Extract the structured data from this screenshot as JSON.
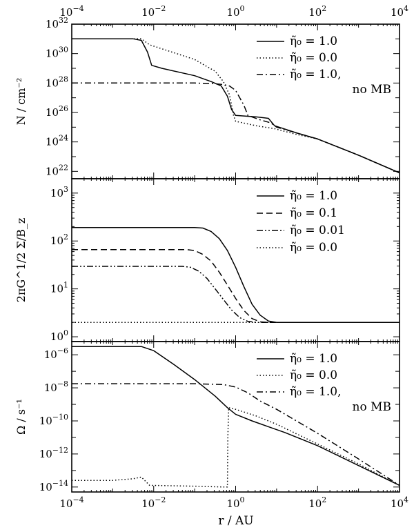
{
  "figure": {
    "xlabel": "r / AU",
    "x_tick_labels": [
      {
        "value": -4,
        "base": "10",
        "exp": "−4"
      },
      {
        "value": -2,
        "base": "10",
        "exp": "−2"
      },
      {
        "value": 0,
        "base": "10",
        "exp": "0"
      },
      {
        "value": 2,
        "base": "10",
        "exp": "2"
      },
      {
        "value": 4,
        "base": "10",
        "exp": "4"
      }
    ]
  },
  "chart_data": [
    {
      "type": "line",
      "panel": "top",
      "xscale": "log",
      "yscale": "log",
      "xlim": [
        0.0001,
        10000
      ],
      "ylim_log10": [
        21.5,
        32
      ],
      "ylabel": "N / cm⁻²",
      "y_tick_labels": [
        {
          "value": 22,
          "base": "10",
          "exp": "22"
        },
        {
          "value": 24,
          "base": "10",
          "exp": "24"
        },
        {
          "value": 26,
          "base": "10",
          "exp": "26"
        },
        {
          "value": 28,
          "base": "10",
          "exp": "28"
        },
        {
          "value": 30,
          "base": "10",
          "exp": "30"
        },
        {
          "value": 32,
          "base": "10",
          "exp": "32"
        }
      ],
      "legend_position": "top-right",
      "series": [
        {
          "name": "η̃₀ = 1.0",
          "style": "solid",
          "points_log10": [
            [
              -4,
              31.0
            ],
            [
              -2.5,
              31.0
            ],
            [
              -2.3,
              30.9
            ],
            [
              -2.15,
              30.1
            ],
            [
              -2.05,
              29.2
            ],
            [
              -1.8,
              29.0
            ],
            [
              -1.0,
              28.5
            ],
            [
              -0.6,
              28.1
            ],
            [
              -0.35,
              27.8
            ],
            [
              -0.2,
              27.1
            ],
            [
              -0.1,
              26.2
            ],
            [
              0.0,
              25.8
            ],
            [
              0.5,
              25.7
            ],
            [
              0.8,
              25.6
            ],
            [
              0.95,
              25.1
            ],
            [
              1.5,
              24.6
            ],
            [
              2.0,
              24.2
            ],
            [
              3.0,
              23.1
            ],
            [
              4.0,
              21.9
            ]
          ]
        },
        {
          "name": "η̃₀ = 0.0",
          "style": "dotted",
          "points_log10": [
            [
              -4,
              31.0
            ],
            [
              -2.3,
              31.0
            ],
            [
              -2.1,
              30.6
            ],
            [
              -1.0,
              29.6
            ],
            [
              -0.5,
              28.8
            ],
            [
              -0.3,
              28.1
            ],
            [
              -0.15,
              27.2
            ],
            [
              -0.05,
              25.8
            ],
            [
              0.0,
              25.4
            ],
            [
              0.5,
              25.1
            ],
            [
              0.95,
              24.9
            ],
            [
              1.5,
              24.5
            ],
            [
              2.0,
              24.2
            ],
            [
              3.0,
              23.1
            ],
            [
              4.0,
              21.9
            ]
          ]
        },
        {
          "name": "η̃₀ = 1.0, no MB",
          "style": "dashdot",
          "points_log10": [
            [
              -4,
              28.0
            ],
            [
              -1.0,
              28.0
            ],
            [
              -0.5,
              27.95
            ],
            [
              -0.3,
              27.9
            ],
            [
              -0.15,
              27.8
            ],
            [
              0.0,
              27.5
            ],
            [
              0.2,
              26.5
            ],
            [
              0.3,
              25.8
            ],
            [
              0.6,
              25.5
            ],
            [
              0.85,
              25.3
            ],
            [
              1.0,
              25.0
            ],
            [
              1.5,
              24.6
            ],
            [
              2.0,
              24.2
            ],
            [
              3.0,
              23.1
            ],
            [
              4.0,
              21.9
            ]
          ]
        }
      ]
    },
    {
      "type": "line",
      "panel": "middle",
      "xscale": "log",
      "yscale": "log",
      "xlim": [
        0.0001,
        10000
      ],
      "ylim_log10": [
        -0.1,
        3.3
      ],
      "ylabel": "2πG^1/2 Σ/B_z",
      "y_tick_labels": [
        {
          "value": 0,
          "base": "10",
          "exp": "0"
        },
        {
          "value": 1,
          "base": "10",
          "exp": "1"
        },
        {
          "value": 2,
          "base": "10",
          "exp": "2"
        },
        {
          "value": 3,
          "base": "10",
          "exp": "3"
        }
      ],
      "legend_position": "top-right",
      "series": [
        {
          "name": "η̃₀ = 1.0",
          "style": "solid",
          "points_log10": [
            [
              -4,
              2.28
            ],
            [
              -1,
              2.28
            ],
            [
              -0.8,
              2.27
            ],
            [
              -0.6,
              2.2
            ],
            [
              -0.4,
              2.05
            ],
            [
              -0.2,
              1.8
            ],
            [
              0.0,
              1.45
            ],
            [
              0.2,
              1.05
            ],
            [
              0.4,
              0.68
            ],
            [
              0.6,
              0.45
            ],
            [
              0.8,
              0.33
            ],
            [
              1.0,
              0.3
            ],
            [
              4.0,
              0.3
            ]
          ]
        },
        {
          "name": "η̃₀ = 0.1",
          "style": "dashed",
          "points_log10": [
            [
              -4,
              1.82
            ],
            [
              -1.2,
              1.82
            ],
            [
              -1,
              1.8
            ],
            [
              -0.8,
              1.72
            ],
            [
              -0.6,
              1.58
            ],
            [
              -0.4,
              1.35
            ],
            [
              -0.2,
              1.08
            ],
            [
              0.0,
              0.8
            ],
            [
              0.2,
              0.55
            ],
            [
              0.4,
              0.38
            ],
            [
              0.6,
              0.31
            ],
            [
              0.8,
              0.3
            ],
            [
              4.0,
              0.3
            ]
          ]
        },
        {
          "name": "η̃₀ = 0.01",
          "style": "dashdotdot",
          "points_log10": [
            [
              -4,
              1.47
            ],
            [
              -1.3,
              1.47
            ],
            [
              -1.1,
              1.45
            ],
            [
              -0.9,
              1.37
            ],
            [
              -0.7,
              1.22
            ],
            [
              -0.5,
              1.0
            ],
            [
              -0.3,
              0.78
            ],
            [
              -0.1,
              0.56
            ],
            [
              0.1,
              0.4
            ],
            [
              0.3,
              0.32
            ],
            [
              0.5,
              0.3
            ],
            [
              4.0,
              0.3
            ]
          ]
        },
        {
          "name": "η̃₀ = 0.0",
          "style": "dotted",
          "points_log10": [
            [
              -4,
              0.3
            ],
            [
              4.0,
              0.3
            ]
          ]
        }
      ]
    },
    {
      "type": "line",
      "panel": "bottom",
      "xscale": "log",
      "yscale": "log",
      "xlim": [
        0.0001,
        10000
      ],
      "ylim_log10": [
        -14.3,
        -5.2
      ],
      "ylabel": "Ω / s⁻¹",
      "y_tick_labels": [
        {
          "value": -14,
          "base": "10",
          "exp": "−14"
        },
        {
          "value": -12,
          "base": "10",
          "exp": "−12"
        },
        {
          "value": -10,
          "base": "10",
          "exp": "−10"
        },
        {
          "value": -8,
          "base": "10",
          "exp": "−8"
        },
        {
          "value": -6,
          "base": "10",
          "exp": "−6"
        }
      ],
      "legend_position": "top-right",
      "series": [
        {
          "name": "η̃₀ = 1.0",
          "style": "solid",
          "points_log10": [
            [
              -4,
              -5.5
            ],
            [
              -2.3,
              -5.5
            ],
            [
              -2.0,
              -5.75
            ],
            [
              -1.5,
              -6.6
            ],
            [
              -1.0,
              -7.5
            ],
            [
              -0.5,
              -8.5
            ],
            [
              -0.2,
              -9.2
            ],
            [
              0.0,
              -9.6
            ],
            [
              0.4,
              -10.0
            ],
            [
              0.8,
              -10.35
            ],
            [
              1.2,
              -10.7
            ],
            [
              2.0,
              -11.5
            ],
            [
              3.0,
              -12.7
            ],
            [
              4.0,
              -13.9
            ]
          ]
        },
        {
          "name": "η̃₀ = 0.0",
          "style": "dotted",
          "points_log10": [
            [
              -4,
              -13.6
            ],
            [
              -3.0,
              -13.6
            ],
            [
              -2.5,
              -13.5
            ],
            [
              -2.3,
              -13.4
            ],
            [
              -2.1,
              -13.9
            ],
            [
              -1.0,
              -13.95
            ],
            [
              -0.3,
              -14.0
            ],
            [
              -0.2,
              -14.0
            ],
            [
              -0.19,
              -11.0
            ],
            [
              -0.17,
              -9.2
            ],
            [
              0.0,
              -9.3
            ],
            [
              0.5,
              -9.7
            ],
            [
              1.0,
              -10.2
            ],
            [
              2.0,
              -11.4
            ],
            [
              3.0,
              -12.6
            ],
            [
              4.0,
              -13.9
            ]
          ]
        },
        {
          "name": "η̃₀ = 1.0, no MB",
          "style": "dashdot",
          "points_log10": [
            [
              -4,
              -7.75
            ],
            [
              -1.0,
              -7.75
            ],
            [
              -0.3,
              -7.8
            ],
            [
              0.0,
              -7.95
            ],
            [
              0.3,
              -8.3
            ],
            [
              0.6,
              -8.8
            ],
            [
              1.0,
              -9.3
            ],
            [
              2.0,
              -10.75
            ],
            [
              3.0,
              -12.3
            ],
            [
              4.0,
              -13.9
            ]
          ]
        }
      ]
    }
  ]
}
